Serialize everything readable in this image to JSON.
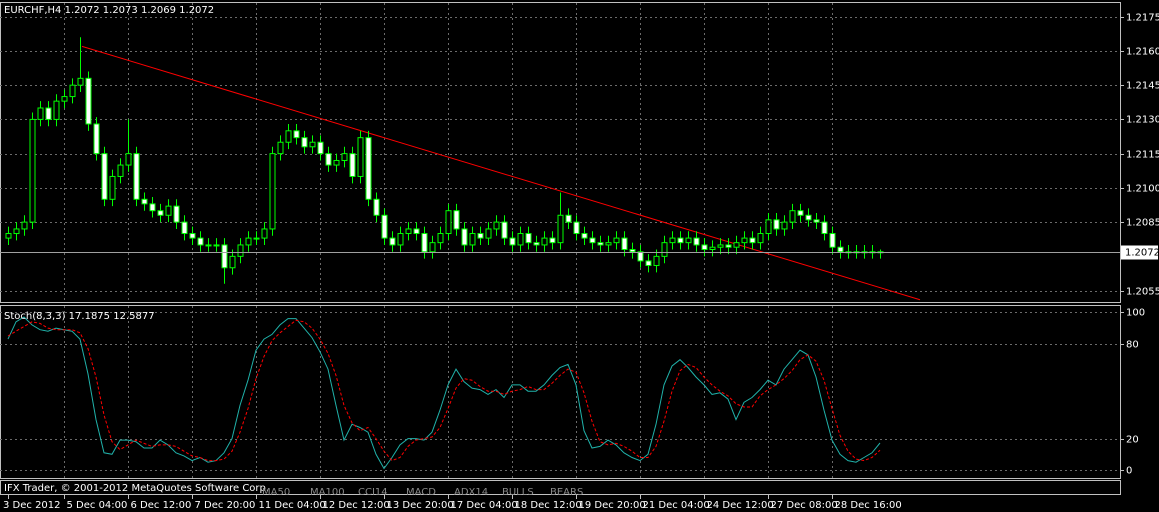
{
  "chart_data": [
    {
      "type": "candlestick",
      "symbol": "EURCHF,H4",
      "bull_color": "#000000",
      "bear_color": "#ffffff",
      "wick_color": "#00ff00",
      "xlim": [
        -1,
        139
      ],
      "ylim": [
        1.205,
        1.2181
      ],
      "yticks": [
        1.2175,
        {
          "value": 1.216,
          "label": "1.2160"
        },
        1.2145,
        {
          "value": 1.213,
          "label": "1.2130"
        },
        1.2115,
        {
          "value": 1.21,
          "label": "1.2100"
        },
        1.2085,
        1.2055
      ],
      "grid": true,
      "trendline": {
        "color": "#ff0000",
        "x": [
          9.25,
          114
        ],
        "y": [
          1.2162,
          1.2051
        ]
      },
      "open": [
        1.2078,
        1.208,
        1.2082,
        1.2085,
        1.213,
        1.2135,
        1.213,
        1.2138,
        1.214,
        1.2145,
        1.2148,
        1.2128,
        1.2115,
        1.2095,
        1.2105,
        1.211,
        1.2115,
        1.2095,
        1.2093,
        1.209,
        1.2088,
        1.2092,
        1.2085,
        1.208,
        1.2078,
        1.2075,
        1.2075,
        1.2075,
        1.2065,
        1.207,
        1.2075,
        1.2078,
        1.2078,
        1.2082,
        1.2115,
        1.212,
        1.2125,
        1.2122,
        1.2118,
        1.212,
        1.2115,
        1.211,
        1.2112,
        1.2115,
        1.2105,
        1.2122,
        1.2095,
        1.2088,
        1.2078,
        1.2075,
        1.208,
        1.2082,
        1.208,
        1.2072,
        1.2076,
        1.208,
        1.209,
        1.2082,
        1.2075,
        1.208,
        1.2078,
        1.2082,
        1.2085,
        1.2078,
        1.2075,
        1.208,
        1.2076,
        1.2075,
        1.2078,
        1.2076,
        1.2088,
        1.2085,
        1.208,
        1.2078,
        1.2076,
        1.2075,
        1.2076,
        1.2078,
        1.2073,
        1.2072,
        1.2068,
        1.2066,
        1.207,
        1.2076,
        1.2078,
        1.2076,
        1.2078,
        1.2075,
        1.2073,
        1.2074,
        1.2075,
        1.2074,
        1.2076,
        1.2078,
        1.2076,
        1.208,
        1.2086,
        1.2082,
        1.2085,
        1.209,
        1.2088,
        1.2086,
        1.2085,
        1.208,
        1.2074,
        1.2072,
        1.2072,
        1.2072,
        1.2072,
        1.2072
      ],
      "high": [
        1.2083,
        1.2085,
        1.2088,
        1.2133,
        1.2138,
        1.2138,
        1.2141,
        1.2143,
        1.2148,
        1.2166,
        1.2151,
        1.2131,
        1.2118,
        1.2108,
        1.2113,
        1.213,
        1.2118,
        1.2098,
        1.2096,
        1.2093,
        1.2095,
        1.2095,
        1.2088,
        1.2083,
        1.2081,
        1.2078,
        1.2078,
        1.2078,
        1.2073,
        1.2078,
        1.2081,
        1.2081,
        1.2085,
        1.2118,
        1.2123,
        1.2128,
        1.2128,
        1.2125,
        1.2123,
        1.2123,
        1.2118,
        1.2115,
        1.2118,
        1.2118,
        1.2125,
        1.2125,
        1.2098,
        1.2091,
        1.2081,
        1.2083,
        1.2085,
        1.2085,
        1.2083,
        1.2079,
        1.2083,
        1.2093,
        1.2093,
        1.2085,
        1.2083,
        1.2083,
        1.2085,
        1.2088,
        1.2088,
        1.2081,
        1.2083,
        1.2083,
        1.2079,
        1.2081,
        1.2081,
        1.2098,
        1.2091,
        1.2088,
        1.2083,
        1.2081,
        1.2079,
        1.2079,
        1.2081,
        1.2081,
        1.2076,
        1.2075,
        1.2071,
        1.2073,
        1.2079,
        1.2081,
        1.2081,
        1.2081,
        1.2081,
        1.2078,
        1.2077,
        1.2078,
        1.2078,
        1.2079,
        1.2081,
        1.2081,
        1.2083,
        1.2089,
        1.2089,
        1.2088,
        1.2093,
        1.2093,
        1.2091,
        1.2089,
        1.2088,
        1.2083,
        1.2077,
        1.2075,
        1.2075,
        1.2075,
        1.2075,
        1.2073
      ],
      "low": [
        1.2075,
        1.2077,
        1.2079,
        1.2082,
        1.2127,
        1.2127,
        1.2127,
        1.2135,
        1.2137,
        1.2142,
        1.2125,
        1.2112,
        1.2092,
        1.2092,
        1.2102,
        1.2107,
        1.2092,
        1.209,
        1.2087,
        1.2085,
        1.2085,
        1.2082,
        1.2077,
        1.2075,
        1.2072,
        1.2072,
        1.2072,
        1.2058,
        1.2062,
        1.2067,
        1.2072,
        1.2075,
        1.2075,
        1.2079,
        1.2112,
        1.2117,
        1.2119,
        1.2115,
        1.2115,
        1.2112,
        1.2107,
        1.2107,
        1.2109,
        1.2102,
        1.2102,
        1.2092,
        1.2085,
        1.2075,
        1.2072,
        1.2072,
        1.2077,
        1.2077,
        1.2069,
        1.2069,
        1.2073,
        1.2077,
        1.2079,
        1.2072,
        1.2072,
        1.2075,
        1.2075,
        1.2079,
        1.2075,
        1.2072,
        1.2072,
        1.2073,
        1.2072,
        1.2072,
        1.2073,
        1.2073,
        1.2082,
        1.2077,
        1.2075,
        1.2073,
        1.2072,
        1.2072,
        1.2073,
        1.207,
        1.2069,
        1.2065,
        1.2063,
        1.2063,
        1.2067,
        1.2073,
        1.2073,
        1.2073,
        1.2072,
        1.207,
        1.207,
        1.2071,
        1.2071,
        1.2071,
        1.2073,
        1.2073,
        1.2073,
        1.2077,
        1.2079,
        1.2079,
        1.2082,
        1.2085,
        1.2083,
        1.2082,
        1.2077,
        1.2071,
        1.2069,
        1.2069,
        1.2069,
        1.2069,
        1.2069,
        1.2069
      ],
      "close": [
        1.208,
        1.2082,
        1.2085,
        1.213,
        1.2135,
        1.213,
        1.2138,
        1.214,
        1.2145,
        1.2148,
        1.2128,
        1.2115,
        1.2095,
        1.2105,
        1.211,
        1.2115,
        1.2095,
        1.2093,
        1.209,
        1.2088,
        1.2092,
        1.2085,
        1.208,
        1.2078,
        1.2075,
        1.2075,
        1.2075,
        1.2065,
        1.207,
        1.2075,
        1.2078,
        1.2078,
        1.2082,
        1.2115,
        1.212,
        1.2125,
        1.2122,
        1.2118,
        1.212,
        1.2115,
        1.211,
        1.2112,
        1.2115,
        1.2105,
        1.2122,
        1.2095,
        1.2088,
        1.2078,
        1.2075,
        1.208,
        1.2082,
        1.208,
        1.2072,
        1.2076,
        1.208,
        1.209,
        1.2082,
        1.2075,
        1.208,
        1.2078,
        1.2082,
        1.2085,
        1.2078,
        1.2075,
        1.208,
        1.2076,
        1.2075,
        1.2078,
        1.2076,
        1.2088,
        1.2085,
        1.208,
        1.2078,
        1.2076,
        1.2075,
        1.2076,
        1.2078,
        1.2073,
        1.2072,
        1.2068,
        1.2066,
        1.207,
        1.2076,
        1.2078,
        1.2076,
        1.2078,
        1.2075,
        1.2073,
        1.2074,
        1.2075,
        1.2074,
        1.2076,
        1.2078,
        1.2076,
        1.208,
        1.2086,
        1.2082,
        1.2085,
        1.209,
        1.2088,
        1.2086,
        1.2085,
        1.208,
        1.2074,
        1.2072,
        1.2072,
        1.2072,
        1.2072,
        1.2072,
        1.2072
      ]
    },
    {
      "type": "line",
      "title": "Stoch(8,3,3)",
      "xlim": [
        -1,
        139
      ],
      "ylim": [
        -5,
        104
      ],
      "yticks": [
        100,
        80,
        20,
        0
      ],
      "grid": true,
      "xticks": [
        {
          "value": 0,
          "label": "3 Dec 2012"
        },
        {
          "value": 7,
          "label": "5 Dec 04:00"
        },
        {
          "value": 15,
          "label": "6 Dec 12:00"
        },
        {
          "value": 23,
          "label": "7 Dec 20:00"
        },
        {
          "value": 31,
          "label": "11 Dec 04:00"
        },
        {
          "value": 39,
          "label": "12 Dec 12:00"
        },
        {
          "value": 47,
          "label": "13 Dec 20:00"
        },
        {
          "value": 55,
          "label": "17 Dec 04:00"
        },
        {
          "value": 63,
          "label": "18 Dec 12:00"
        },
        {
          "value": 71,
          "label": "19 Dec 20:00"
        },
        {
          "value": 79,
          "label": "21 Dec 04:00"
        },
        {
          "value": 87,
          "label": "24 Dec 12:00"
        },
        {
          "value": 95,
          "label": "27 Dec 08:00"
        },
        {
          "value": 103,
          "label": "28 Dec 16:00"
        }
      ],
      "series": [
        {
          "color": "#20b2aa",
          "dashed": false,
          "values": [
            83,
            94,
            97,
            92,
            89,
            88,
            90,
            89,
            88,
            83,
            61,
            32,
            11,
            10,
            19,
            19,
            18,
            14,
            14,
            19,
            16,
            11,
            9,
            6,
            8,
            5,
            6,
            11,
            20,
            41,
            57,
            76,
            83,
            86,
            92,
            96,
            96,
            90,
            84,
            75,
            64,
            41,
            19,
            29,
            27,
            24,
            10,
            1,
            8,
            16,
            20,
            20,
            19,
            24,
            38,
            54,
            64,
            56,
            52,
            51,
            48,
            51,
            46,
            54,
            54,
            50,
            50,
            54,
            60,
            65,
            67,
            54,
            25,
            14,
            15,
            19,
            16,
            11,
            8,
            6,
            10,
            29,
            54,
            66,
            70,
            65,
            59,
            54,
            48,
            49,
            45,
            32,
            43,
            46,
            51,
            57,
            54,
            64,
            70,
            76,
            73,
            59,
            38,
            19,
            10,
            6,
            5,
            8,
            11,
            17.1875
          ]
        },
        {
          "color": "#ff0000",
          "dashed": true,
          "values": [
            85,
            88,
            91,
            94,
            93,
            90,
            89,
            89,
            89,
            87,
            77,
            59,
            35,
            18,
            13,
            16,
            19,
            17,
            15,
            16,
            16,
            15,
            12,
            9,
            8,
            6,
            6,
            7,
            12,
            24,
            39,
            58,
            72,
            82,
            87,
            91,
            95,
            94,
            90,
            83,
            74,
            60,
            41,
            30,
            25,
            27,
            20,
            12,
            6,
            8,
            15,
            19,
            20,
            21,
            27,
            39,
            52,
            58,
            57,
            53,
            50,
            50,
            48,
            50,
            51,
            53,
            51,
            51,
            55,
            60,
            64,
            62,
            49,
            31,
            18,
            16,
            17,
            15,
            12,
            8,
            8,
            15,
            31,
            50,
            63,
            67,
            65,
            59,
            54,
            50,
            47,
            42,
            40,
            40,
            47,
            51,
            54,
            58,
            63,
            70,
            73,
            69,
            57,
            39,
            22,
            12,
            7,
            6,
            8,
            12.5877
          ]
        }
      ]
    }
  ],
  "footer": {
    "text": "IFX Trader, © 2001-2012 MetaQuotes Software Corp.",
    "tabs": [
      "MA50",
      "MA100",
      "CCI14",
      "MACD",
      "ADX14",
      "BULLS",
      "BEARS"
    ]
  }
}
